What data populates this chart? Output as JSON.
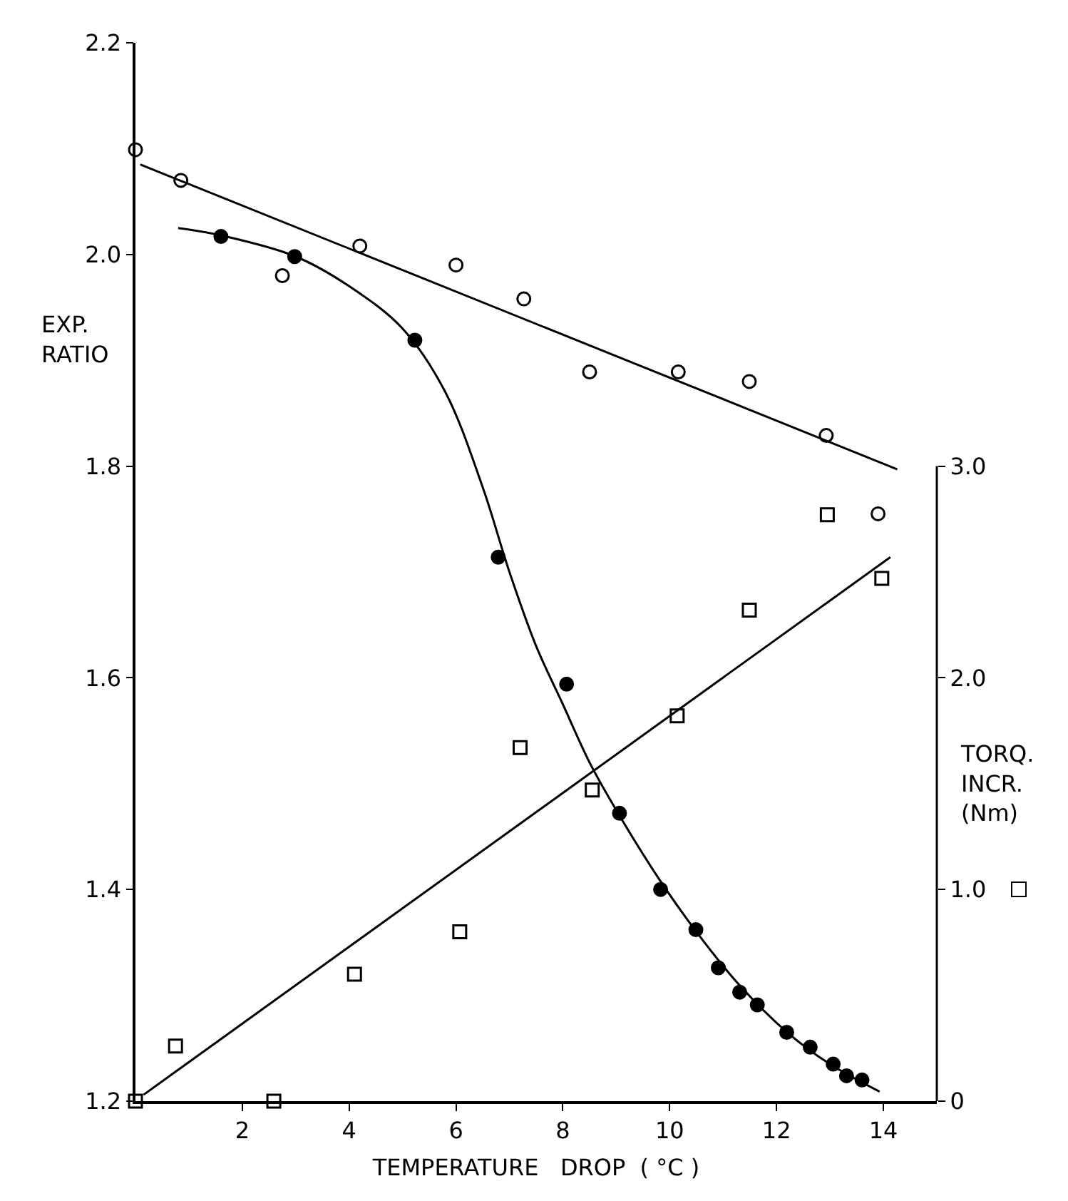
{
  "chart_data": {
    "type": "scatter",
    "xlabel": "TEMPERATURE   DROP  ( °C )",
    "ylabel": "EXP.\nRATIO",
    "y2label": "TORQ.\nINCR.\n(Nm)",
    "xlim": [
      0,
      15
    ],
    "xticks": [
      2,
      4,
      6,
      8,
      10,
      12,
      14
    ],
    "ylim": [
      1.2,
      2.2
    ],
    "yticks": [
      {
        "value": 1.2,
        "label": "1.2"
      },
      {
        "value": 1.4,
        "label": "1.4"
      },
      {
        "value": 1.6,
        "label": "1.6"
      },
      {
        "value": 1.8,
        "label": "1.8"
      },
      {
        "value": 2.0,
        "label": "2.0"
      },
      {
        "value": 2.2,
        "label": "2.2"
      }
    ],
    "y2lim": [
      0,
      5
    ],
    "y2ticks": [
      0,
      {
        "value": 1,
        "label": "1.0"
      },
      {
        "value": 2,
        "label": "2.0"
      },
      {
        "value": 3,
        "label": "3.0"
      }
    ],
    "grid": false,
    "series": [
      {
        "marker": "circle-open",
        "color": "#000000",
        "x": [
          0,
          0.85,
          2.75,
          4.2,
          6.0,
          7.27,
          8.5,
          10.16,
          11.49,
          12.93,
          13.9
        ],
        "values": [
          2.099,
          2.07,
          1.98,
          2.008,
          1.99,
          1.958,
          1.889,
          1.889,
          1.88,
          1.829,
          1.755
        ]
      },
      {
        "type": "line",
        "marker": "none",
        "color": "#000000",
        "x": [
          0.09,
          14.26
        ],
        "values": [
          2.085,
          1.797
        ]
      },
      {
        "marker": "circle",
        "color": "#000000",
        "x": [
          1.6,
          2.98,
          5.23,
          6.79,
          8.07,
          9.06,
          9.83,
          10.49,
          10.91,
          11.31,
          11.64,
          12.19,
          12.63,
          13.06,
          13.31,
          13.6
        ],
        "values": [
          2.017,
          1.998,
          1.919,
          1.714,
          1.594,
          1.472,
          1.4,
          1.362,
          1.326,
          1.303,
          1.291,
          1.265,
          1.251,
          1.235,
          1.224,
          1.22
        ]
      },
      {
        "type": "line",
        "marker": "none",
        "color": "#000000",
        "x": [
          0.8,
          1.6,
          3,
          4,
          5,
          5.8,
          6.5,
          7,
          7.5,
          8,
          8.5,
          9,
          9.8,
          10.5,
          11.3,
          12.2,
          13,
          13.93
        ],
        "values": [
          2.025,
          2.018,
          1.998,
          1.97,
          1.93,
          1.87,
          1.78,
          1.7,
          1.63,
          1.575,
          1.52,
          1.475,
          1.41,
          1.36,
          1.31,
          1.265,
          1.235,
          1.209
        ]
      },
      {
        "axis": "y2",
        "marker": "square-open",
        "color": "#000000",
        "x": [
          0,
          0.75,
          2.59,
          4.1,
          6.07,
          7.2,
          8.55,
          10.14,
          11.49,
          12.95,
          13.97
        ],
        "values": [
          0,
          0.26,
          0,
          0.6,
          0.8,
          1.67,
          1.47,
          1.82,
          2.32,
          2.77,
          2.47
        ]
      },
      {
        "type": "line",
        "axis": "y2",
        "marker": "none",
        "color": "#000000",
        "x": [
          0.15,
          14.13
        ],
        "values": [
          0.03,
          2.57
        ]
      }
    ]
  }
}
